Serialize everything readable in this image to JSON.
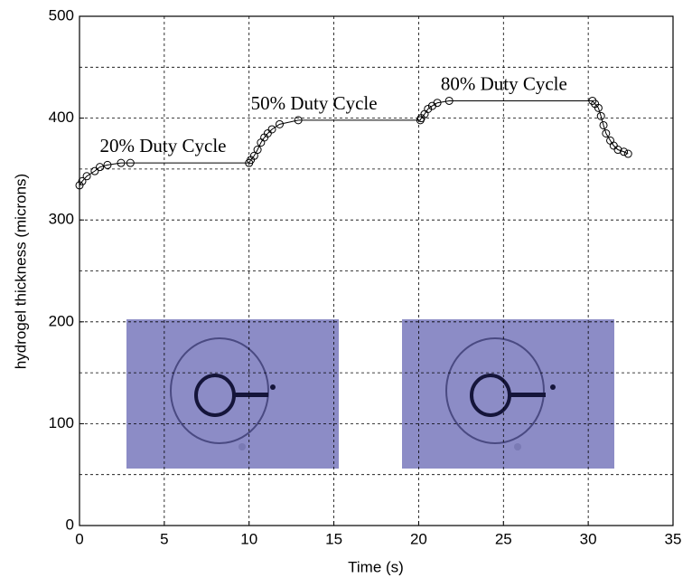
{
  "chart_data": {
    "type": "line",
    "x_label": "Time (s)",
    "y_label": "hydrogel thickness (microns)",
    "x": [
      0,
      0.16,
      0.43,
      0.9,
      1.2,
      1.65,
      2.45,
      3.0,
      10.0,
      10.1,
      10.3,
      10.5,
      10.7,
      10.9,
      11.1,
      11.35,
      11.8,
      12.9,
      20.1,
      20.15,
      20.35,
      20.55,
      20.8,
      21.1,
      21.8,
      30.25,
      30.4,
      30.6,
      30.75,
      30.9,
      31.05,
      31.3,
      31.5,
      31.75,
      32.1,
      32.35
    ],
    "series": [
      {
        "color": "#000000",
        "values": [
          334,
          338,
          343,
          348,
          352,
          354,
          356,
          356,
          356,
          359,
          363,
          369,
          376,
          381,
          385,
          389,
          394,
          398,
          398,
          400,
          404,
          409,
          412,
          415,
          417,
          417,
          414,
          410,
          402,
          393,
          385,
          378,
          373,
          369,
          367,
          365
        ]
      }
    ],
    "annotations": [
      {
        "text": "20% Duty Cycle",
        "x": 1.2,
        "y": 371
      },
      {
        "text": "50% Duty Cycle",
        "x": 10.1,
        "y": 413
      },
      {
        "text": "80% Duty Cycle",
        "x": 21.3,
        "y": 432
      }
    ],
    "xlim": [
      0,
      35
    ],
    "xticks": [
      0,
      5,
      10,
      15,
      20,
      25,
      30,
      35
    ],
    "ylim": [
      0,
      500
    ],
    "yticks": [
      0,
      100,
      200,
      300,
      400,
      500
    ],
    "y_minor_grid": [
      50,
      150,
      250,
      350,
      450
    ],
    "grid": true
  }
}
